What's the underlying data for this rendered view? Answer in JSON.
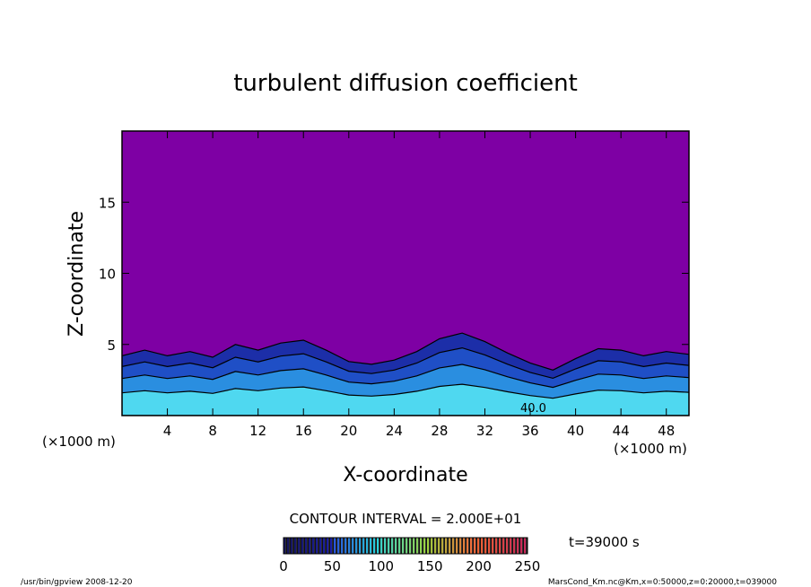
{
  "chart_data": {
    "type": "heatmap",
    "title": "turbulent diffusion coefficient",
    "xlabel": "X-coordinate",
    "ylabel": "Z-coordinate",
    "x_unit": "(×1000 m)",
    "z_unit": "(×1000 m)",
    "xlim": [
      0,
      50
    ],
    "ylim": [
      0,
      20
    ],
    "x_ticks": [
      4,
      8,
      12,
      16,
      20,
      24,
      28,
      32,
      36,
      40,
      44,
      48
    ],
    "y_ticks": [
      5,
      10,
      15
    ],
    "boundary_layer_top_profile": [
      [
        0,
        4.2
      ],
      [
        2,
        4.6
      ],
      [
        4,
        4.2
      ],
      [
        6,
        4.5
      ],
      [
        8,
        4.1
      ],
      [
        10,
        5.0
      ],
      [
        12,
        4.6
      ],
      [
        14,
        5.1
      ],
      [
        16,
        5.3
      ],
      [
        18,
        4.6
      ],
      [
        20,
        3.8
      ],
      [
        22,
        3.6
      ],
      [
        24,
        3.9
      ],
      [
        26,
        4.5
      ],
      [
        28,
        5.4
      ],
      [
        30,
        5.8
      ],
      [
        32,
        5.2
      ],
      [
        34,
        4.4
      ],
      [
        36,
        3.7
      ],
      [
        38,
        3.2
      ],
      [
        40,
        4.0
      ],
      [
        42,
        4.7
      ],
      [
        44,
        4.6
      ],
      [
        46,
        4.2
      ],
      [
        48,
        4.5
      ],
      [
        50,
        4.3
      ]
    ],
    "in_plot_label": "40.0",
    "colorbar": {
      "min": 0,
      "max": 250,
      "ticks": [
        0,
        50,
        100,
        150,
        200,
        250
      ]
    },
    "grid": false
  },
  "contour_interval_text": "CONTOUR INTERVAL = 2.000E+01",
  "time_text": "t=39000  s",
  "footer_left": "/usr/bin/gpview   2008-12-20",
  "footer_right": "MarsCond_Km.nc@Km,x=0:50000,z=0:20000,t=039000",
  "colors": {
    "background": "#7e00a4",
    "low": "#1c2ea8",
    "mid": "#2a8ee0",
    "high": "#4fd8f0",
    "contour": "#000000"
  }
}
